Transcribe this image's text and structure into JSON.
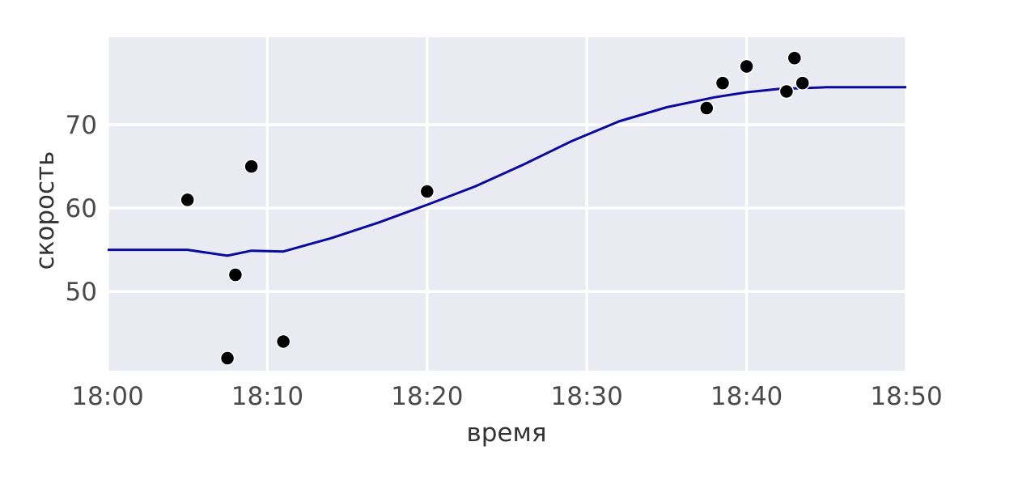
{
  "chart_data": {
    "type": "scatter",
    "title": "",
    "xlabel": "время",
    "ylabel": "скорость",
    "x_unit": "minutes",
    "xlim": [
      0,
      50
    ],
    "ylim": [
      40.5,
      80.5
    ],
    "x_ticks": [
      0,
      10,
      20,
      30,
      40,
      50
    ],
    "x_tick_labels": [
      "18:00",
      "18:10",
      "18:20",
      "18:30",
      "18:40",
      "18:50"
    ],
    "y_ticks": [
      50,
      60,
      70
    ],
    "y_tick_labels": [
      "50",
      "60",
      "70"
    ],
    "grid": true,
    "colors": {
      "plot_background": "#eaeaf2",
      "grid": "#ffffff",
      "points": "#000000",
      "line": "#0a0a9e"
    },
    "series": [
      {
        "type": "scatter",
        "x": [
          "18:05",
          "18:07:30",
          "18:08",
          "18:09",
          "18:11",
          "18:20",
          "18:37:30",
          "18:38:30",
          "18:40",
          "18:42:30",
          "18:43",
          "18:43:30"
        ],
        "y": [
          61,
          42,
          52,
          65,
          44,
          62,
          72,
          75,
          77,
          74,
          78,
          75
        ]
      },
      {
        "type": "line",
        "x": [
          "18:00",
          "18:05",
          "18:07:30",
          "18:09",
          "18:11",
          "18:14",
          "18:17",
          "18:20",
          "18:23",
          "18:26",
          "18:29",
          "18:32",
          "18:35",
          "18:38",
          "18:40",
          "18:42",
          "18:45",
          "18:50"
        ],
        "y": [
          55,
          55,
          54.3,
          54.9,
          54.8,
          56.4,
          58.3,
          60.4,
          62.6,
          65.2,
          68,
          70.4,
          72.1,
          73.3,
          73.9,
          74.3,
          74.5,
          74.5
        ]
      }
    ]
  }
}
